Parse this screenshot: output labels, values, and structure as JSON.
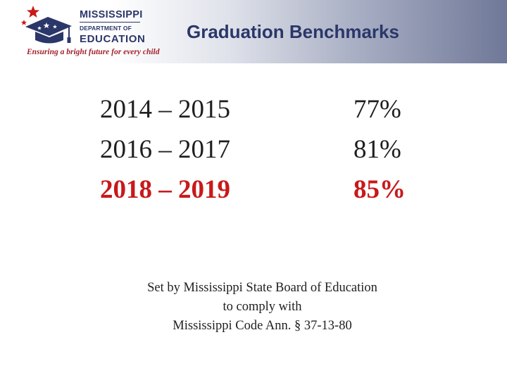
{
  "logo": {
    "name_line1": "MISSISSIPPI",
    "name_line2": "DEPARTMENT OF",
    "name_line3": "EDUCATION",
    "tagline": "Ensuring a bright future for every child"
  },
  "title": "Graduation Benchmarks",
  "benchmarks": [
    {
      "years": "2014 – 2015",
      "rate": "77%"
    },
    {
      "years": "2016 – 2017",
      "rate": "81%"
    },
    {
      "years": "2018 – 2019",
      "rate": "85%"
    }
  ],
  "note": {
    "line1": "Set by Mississippi State Board of Education",
    "line2": "to comply with",
    "line3": "Mississippi Code Ann. § 37-13-80"
  },
  "colors": {
    "brand_navy": "#2b3769",
    "brand_red": "#a3222d",
    "highlight_red": "#c8191b"
  }
}
